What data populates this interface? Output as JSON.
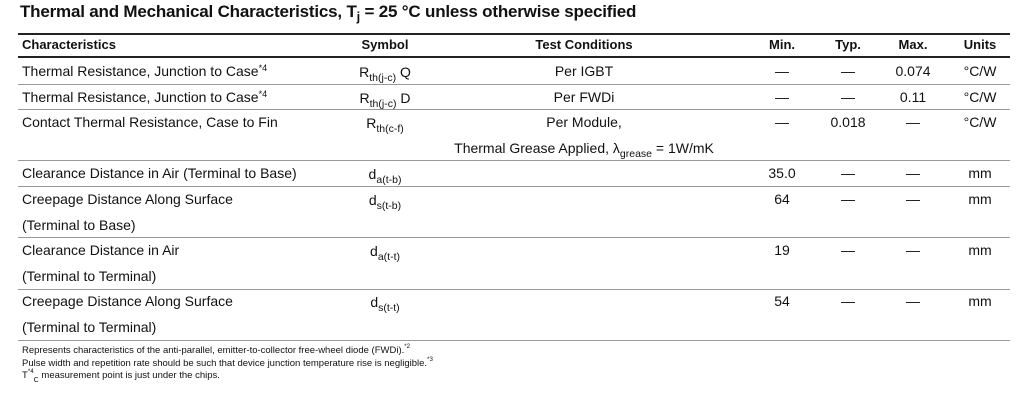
{
  "title": {
    "text": "Thermal and Mechanical Characteristics, T",
    "sub": "j",
    "rest": " = 25 °C unless otherwise specified"
  },
  "table": {
    "header": [
      "Characteristics",
      "Symbol",
      "Test Conditions",
      "Min.",
      "Typ.",
      "Max.",
      "Units"
    ],
    "rows": [
      {
        "characteristic": [
          {
            "text": "Thermal Resistance, Junction to Case",
            "sup": "*4"
          }
        ],
        "symbol": {
          "text": "R",
          "sub": "th(j-c)",
          "rest": " Q"
        },
        "conditions": [
          {
            "text": "Per IGBT"
          }
        ],
        "min": "—",
        "typ": "—",
        "max": "0.074",
        "units": "°C/W"
      },
      {
        "characteristic": [
          {
            "text": "Thermal Resistance, Junction to Case",
            "sup": "*4"
          }
        ],
        "symbol": {
          "text": "R",
          "sub": "th(j-c)",
          "rest": " D"
        },
        "conditions": [
          {
            "text": "Per FWDi"
          }
        ],
        "min": "—",
        "typ": "—",
        "max": "0.11",
        "units": "°C/W"
      },
      {
        "characteristic": [
          {
            "text": "Contact Thermal Resistance, Case to Fin"
          }
        ],
        "symbol": {
          "text": "R",
          "sub": "th(c-f)"
        },
        "conditions": [
          {
            "text": "Per Module,"
          },
          {
            "text": "Thermal Grease Applied, λ",
            "sub": "grease",
            "rest": " = 1W/mK"
          }
        ],
        "min": "—",
        "typ": "0.018",
        "max": "—",
        "units": "°C/W"
      },
      {
        "characteristic": [
          {
            "text": "Clearance Distance in Air (Terminal to Base)"
          }
        ],
        "symbol": {
          "text": "d",
          "sub": "a(t-b)"
        },
        "min": "35.0",
        "typ": "—",
        "max": "—",
        "units": "mm"
      },
      {
        "characteristic": [
          {
            "text": "Creepage Distance Along Surface"
          },
          {
            "text": "(Terminal to Base)"
          }
        ],
        "symbol": {
          "text": "d",
          "sub": "s(t-b)"
        },
        "min": "64",
        "typ": "—",
        "max": "—",
        "units": "mm"
      },
      {
        "characteristic": [
          {
            "text": "Clearance Distance in Air"
          },
          {
            "text": "(Terminal to Terminal)"
          }
        ],
        "symbol": {
          "text": "d",
          "sub": "a(t-t)"
        },
        "min": "19",
        "typ": "—",
        "max": "—",
        "units": "mm"
      },
      {
        "characteristic": [
          {
            "text": "Creepage Distance Along Surface"
          },
          {
            "text": "(Terminal to Terminal)"
          }
        ],
        "symbol": {
          "text": "d",
          "sub": "s(t-t)"
        },
        "min": "54",
        "typ": "—",
        "max": "—",
        "units": "mm"
      }
    ]
  },
  "notes": [
    {
      "sup": "*2",
      "text": " Represents characteristics of the anti-parallel, emitter-to-collector free-wheel diode (FWDi)."
    },
    {
      "sup": "*3",
      "text": " Pulse width and repetition rate should be such that device junction temperature rise is negligible."
    },
    {
      "sup": "*4",
      "text": " T",
      "sub": "C",
      "rest": " measurement point is just under the chips."
    }
  ]
}
